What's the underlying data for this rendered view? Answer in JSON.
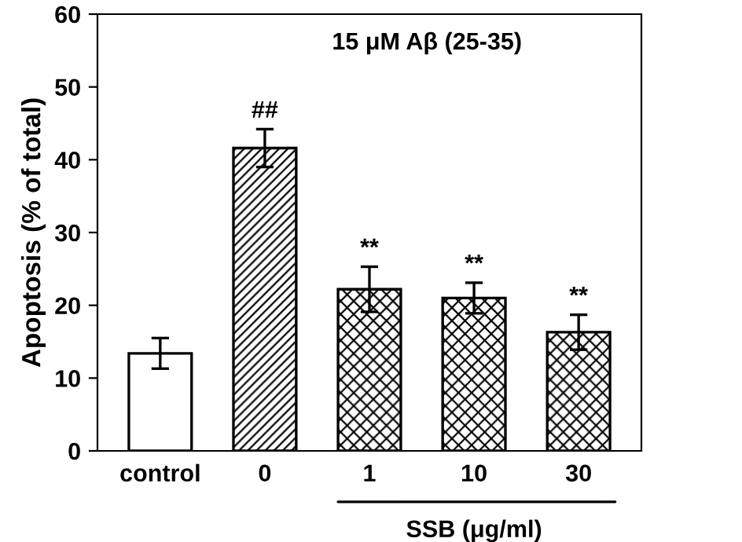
{
  "chart_data": {
    "type": "bar",
    "categories": [
      "control",
      "0",
      "1",
      "10",
      "30"
    ],
    "values": [
      13.4,
      41.6,
      22.2,
      21.0,
      16.3
    ],
    "errors": [
      2.1,
      2.6,
      3.1,
      2.1,
      2.4
    ],
    "ylabel": "Apoptosis (% of total)",
    "ylim": [
      0,
      60
    ],
    "yticks": [
      0,
      10,
      20,
      30,
      40,
      50,
      60
    ],
    "grid": false,
    "legend": false,
    "annotations": [
      "##",
      "**",
      "**",
      "**",
      "15 μM Aβ (25-35)",
      "SSB (μg/ml)"
    ]
  }
}
